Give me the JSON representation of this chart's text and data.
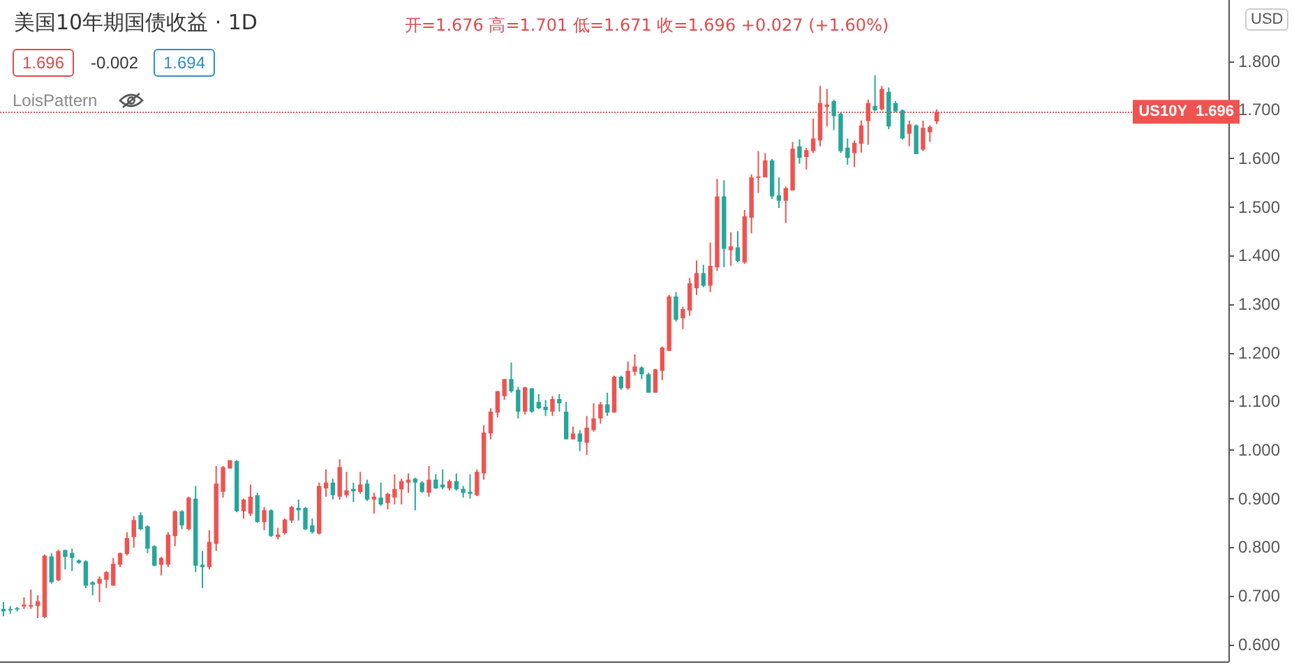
{
  "chart_data": {
    "type": "candlestick",
    "title": "美国10年期国债收益 · 1D",
    "subtitle": "开=1.676 高=1.701 低=1.671 收=1.696 +0.027 (+1.60%)",
    "annotations": [
      "1.696",
      "-0.002",
      "1.694",
      "LoisPattern",
      "USD"
    ],
    "categories": [
      null,
      null,
      null,
      null,
      null,
      null,
      null,
      null,
      null,
      null,
      null,
      null,
      null,
      null,
      null,
      null,
      null,
      null,
      null,
      null,
      null,
      null,
      null,
      null,
      null,
      null,
      null,
      null,
      null,
      null,
      null,
      null,
      null,
      null,
      null,
      null,
      null,
      null,
      null,
      null,
      null,
      null,
      null,
      null,
      null,
      null,
      null,
      null,
      null,
      null,
      null,
      null,
      null,
      null,
      null,
      null,
      null,
      null,
      null,
      null,
      null,
      null,
      null,
      null,
      null,
      null,
      null,
      null,
      null,
      null,
      null,
      null,
      null,
      null,
      null,
      null,
      null,
      null,
      null,
      null,
      null,
      null,
      null,
      null,
      null,
      null,
      null,
      null,
      null,
      null,
      null,
      null,
      null,
      null,
      null,
      null,
      null,
      null,
      null,
      null,
      null,
      null,
      null,
      null,
      null,
      null,
      null,
      null,
      null,
      null,
      null,
      null,
      null,
      null,
      null,
      null,
      null,
      null,
      null,
      null,
      null,
      null,
      null,
      null,
      null,
      null,
      null,
      null,
      null,
      null,
      null,
      null,
      null,
      null,
      null,
      null,
      null,
      null,
      null,
      null,
      null,
      null,
      null,
      null,
      null,
      null,
      null,
      null,
      null,
      null,
      null,
      null,
      null,
      null,
      null,
      null,
      null,
      null,
      null,
      null,
      null,
      null,
      null,
      null,
      null,
      null,
      null,
      null,
      null,
      null,
      null,
      null,
      null,
      null,
      null,
      null,
      null,
      null,
      null
    ],
    "ohlc": [
      [
        0.673,
        0.687,
        0.658,
        0.668
      ],
      [
        0.673,
        0.679,
        0.663,
        0.671
      ],
      [
        0.675,
        0.677,
        0.668,
        0.672
      ],
      [
        0.678,
        0.697,
        0.673,
        0.682
      ],
      [
        0.678,
        0.713,
        0.673,
        0.681
      ],
      [
        0.679,
        0.701,
        0.654,
        0.689
      ],
      [
        0.656,
        0.785,
        0.654,
        0.783
      ],
      [
        0.781,
        0.788,
        0.725,
        0.728
      ],
      [
        0.732,
        0.795,
        0.73,
        0.792
      ],
      [
        0.794,
        0.795,
        0.754,
        0.78
      ],
      [
        0.788,
        0.797,
        0.751,
        0.778
      ],
      [
        0.773,
        0.775,
        0.766,
        0.768
      ],
      [
        0.771,
        0.773,
        0.716,
        0.721
      ],
      [
        0.728,
        0.73,
        0.701,
        0.723
      ],
      [
        0.725,
        0.74,
        0.687,
        0.735
      ],
      [
        0.733,
        0.751,
        0.716,
        0.749
      ],
      [
        0.721,
        0.778,
        0.721,
        0.766
      ],
      [
        0.764,
        0.789,
        0.759,
        0.788
      ],
      [
        0.786,
        0.831,
        0.783,
        0.819
      ],
      [
        0.821,
        0.864,
        0.799,
        0.856
      ],
      [
        0.866,
        0.872,
        0.835,
        0.837
      ],
      [
        0.843,
        0.845,
        0.788,
        0.797
      ],
      [
        0.802,
        0.804,
        0.761,
        0.762
      ],
      [
        0.764,
        0.78,
        0.742,
        0.778
      ],
      [
        0.764,
        0.831,
        0.759,
        0.826
      ],
      [
        0.823,
        0.876,
        0.802,
        0.874
      ],
      [
        0.874,
        0.876,
        0.837,
        0.845
      ],
      [
        0.837,
        0.904,
        0.835,
        0.902
      ],
      [
        0.9,
        0.926,
        0.749,
        0.762
      ],
      [
        0.764,
        0.792,
        0.716,
        0.759
      ],
      [
        0.759,
        0.835,
        0.754,
        0.811
      ],
      [
        0.807,
        0.967,
        0.792,
        0.931
      ],
      [
        0.914,
        0.967,
        0.902,
        0.965
      ],
      [
        0.962,
        0.979,
        0.962,
        0.979
      ],
      [
        0.977,
        0.979,
        0.872,
        0.874
      ],
      [
        0.874,
        0.9,
        0.859,
        0.898
      ],
      [
        0.869,
        0.929,
        0.864,
        0.904
      ],
      [
        0.907,
        0.912,
        0.85,
        0.852
      ],
      [
        0.852,
        0.883,
        0.835,
        0.876
      ],
      [
        0.876,
        0.878,
        0.821,
        0.823
      ],
      [
        0.821,
        0.84,
        0.816,
        0.826
      ],
      [
        0.829,
        0.859,
        0.826,
        0.857
      ],
      [
        0.855,
        0.885,
        0.85,
        0.883
      ],
      [
        0.881,
        0.898,
        0.855,
        0.876
      ],
      [
        0.881,
        0.883,
        0.835,
        0.837
      ],
      [
        0.845,
        0.859,
        0.828,
        0.831
      ],
      [
        0.828,
        0.933,
        0.826,
        0.926
      ],
      [
        0.921,
        0.96,
        0.904,
        0.933
      ],
      [
        0.933,
        0.941,
        0.898,
        0.907
      ],
      [
        0.904,
        0.981,
        0.898,
        0.965
      ],
      [
        0.907,
        0.955,
        0.902,
        0.917
      ],
      [
        0.92,
        0.933,
        0.893,
        0.915
      ],
      [
        0.914,
        0.955,
        0.91,
        0.929
      ],
      [
        0.931,
        0.939,
        0.895,
        0.898
      ],
      [
        0.898,
        0.912,
        0.869,
        0.904
      ],
      [
        0.902,
        0.933,
        0.885,
        0.888
      ],
      [
        0.891,
        0.912,
        0.878,
        0.91
      ],
      [
        0.902,
        0.95,
        0.888,
        0.92
      ],
      [
        0.919,
        0.941,
        0.888,
        0.936
      ],
      [
        0.933,
        0.952,
        0.912,
        0.939
      ],
      [
        0.941,
        0.943,
        0.876,
        0.933
      ],
      [
        0.933,
        0.936,
        0.912,
        0.914
      ],
      [
        0.912,
        0.967,
        0.904,
        0.939
      ],
      [
        0.939,
        0.95,
        0.92,
        0.921
      ],
      [
        0.929,
        0.96,
        0.919,
        0.923
      ],
      [
        0.921,
        0.939,
        0.917,
        0.936
      ],
      [
        0.936,
        0.952,
        0.917,
        0.919
      ],
      [
        0.92,
        0.926,
        0.902,
        0.912
      ],
      [
        0.914,
        0.95,
        0.9,
        0.91
      ],
      [
        0.907,
        0.96,
        0.905,
        0.955
      ],
      [
        0.952,
        1.051,
        0.939,
        1.036
      ],
      [
        1.034,
        1.086,
        1.022,
        1.079
      ],
      [
        1.077,
        1.122,
        1.067,
        1.121
      ],
      [
        1.111,
        1.146,
        1.103,
        1.146
      ],
      [
        1.146,
        1.18,
        1.118,
        1.121
      ],
      [
        1.124,
        1.13,
        1.065,
        1.079
      ],
      [
        1.079,
        1.13,
        1.073,
        1.129
      ],
      [
        1.127,
        1.127,
        1.077,
        1.079
      ],
      [
        1.099,
        1.115,
        1.084,
        1.086
      ],
      [
        1.089,
        1.103,
        1.07,
        1.082
      ],
      [
        1.079,
        1.111,
        1.07,
        1.105
      ],
      [
        1.105,
        1.115,
        1.079,
        1.096
      ],
      [
        1.079,
        1.099,
        1.022,
        1.022
      ],
      [
        1.022,
        1.048,
        1.022,
        1.034
      ],
      [
        1.034,
        1.041,
        0.998,
        1.017
      ],
      [
        1.015,
        1.07,
        0.99,
        1.046
      ],
      [
        1.041,
        1.096,
        1.038,
        1.065
      ],
      [
        1.065,
        1.099,
        1.054,
        1.094
      ],
      [
        1.094,
        1.118,
        1.07,
        1.077
      ],
      [
        1.077,
        1.153,
        1.077,
        1.151
      ],
      [
        1.151,
        1.153,
        1.124,
        1.127
      ],
      [
        1.127,
        1.182,
        1.124,
        1.163
      ],
      [
        1.161,
        1.197,
        1.153,
        1.172
      ],
      [
        1.17,
        1.172,
        1.146,
        1.156
      ],
      [
        1.156,
        1.159,
        1.118,
        1.118
      ],
      [
        1.118,
        1.167,
        1.118,
        1.166
      ],
      [
        1.163,
        1.213,
        1.144,
        1.211
      ],
      [
        1.204,
        1.319,
        1.204,
        1.316
      ],
      [
        1.316,
        1.325,
        1.264,
        1.268
      ],
      [
        1.271,
        1.295,
        1.249,
        1.29
      ],
      [
        1.287,
        1.354,
        1.276,
        1.343
      ],
      [
        1.333,
        1.39,
        1.319,
        1.364
      ],
      [
        1.364,
        1.381,
        1.335,
        1.338
      ],
      [
        1.338,
        1.427,
        1.325,
        1.379
      ],
      [
        1.376,
        1.558,
        1.369,
        1.522
      ],
      [
        1.522,
        1.555,
        1.376,
        1.414
      ],
      [
        1.411,
        1.448,
        1.379,
        1.419
      ],
      [
        1.417,
        1.45,
        1.386,
        1.389
      ],
      [
        1.386,
        1.494,
        1.383,
        1.481
      ],
      [
        1.478,
        1.567,
        1.446,
        1.561
      ],
      [
        1.561,
        1.615,
        1.529,
        1.563
      ],
      [
        1.561,
        1.611,
        1.561,
        1.596
      ],
      [
        1.596,
        1.599,
        1.517,
        1.522
      ],
      [
        1.524,
        1.561,
        1.498,
        1.513
      ],
      [
        1.513,
        1.542,
        1.467,
        1.539
      ],
      [
        1.534,
        1.634,
        1.534,
        1.62
      ],
      [
        1.625,
        1.639,
        1.589,
        1.601
      ],
      [
        1.603,
        1.622,
        1.577,
        1.617
      ],
      [
        1.615,
        1.682,
        1.611,
        1.641
      ],
      [
        1.637,
        1.749,
        1.625,
        1.714
      ],
      [
        1.706,
        1.743,
        1.666,
        1.711
      ],
      [
        1.718,
        1.721,
        1.658,
        1.687
      ],
      [
        1.692,
        1.695,
        1.611,
        1.615
      ],
      [
        1.622,
        1.641,
        1.587,
        1.601
      ],
      [
        1.611,
        1.637,
        1.582,
        1.632
      ],
      [
        1.63,
        1.678,
        1.612,
        1.668
      ],
      [
        1.677,
        1.721,
        1.628,
        1.714
      ],
      [
        1.708,
        1.771,
        1.697,
        1.699
      ],
      [
        1.701,
        1.749,
        1.699,
        1.743
      ],
      [
        1.737,
        1.746,
        1.66,
        1.666
      ],
      [
        1.714,
        1.718,
        1.695,
        1.697
      ],
      [
        1.699,
        1.701,
        1.639,
        1.641
      ],
      [
        1.651,
        1.678,
        1.625,
        1.67
      ],
      [
        1.668,
        1.67,
        1.609,
        1.609
      ],
      [
        1.618,
        1.678,
        1.615,
        1.663
      ],
      [
        1.654,
        1.668,
        1.634,
        1.665
      ],
      [
        1.676,
        1.701,
        1.671,
        1.696
      ],
      null,
      null,
      null,
      null,
      null,
      null,
      null,
      null,
      null,
      null,
      null,
      null,
      null,
      null,
      null,
      null,
      null,
      null,
      null,
      null,
      null,
      null,
      null,
      null,
      null,
      null,
      null,
      null,
      null,
      null,
      null,
      null,
      null,
      null,
      null,
      null,
      null,
      null,
      null,
      null,
      null,
      null
    ],
    "ylim": [
      0.565,
      1.926
    ],
    "yticks": [
      {
        "value": 0.6,
        "label": "0.600"
      },
      {
        "value": 0.7,
        "label": "0.700"
      },
      {
        "value": 0.8,
        "label": "0.800"
      },
      {
        "value": 0.9,
        "label": "0.900"
      },
      {
        "value": 1.0,
        "label": "1.000"
      },
      {
        "value": 1.1,
        "label": "1.100"
      },
      {
        "value": 1.2,
        "label": "1.200"
      },
      {
        "value": 1.3,
        "label": "1.300"
      },
      {
        "value": 1.4,
        "label": "1.400"
      },
      {
        "value": 1.5,
        "label": "1.500"
      },
      {
        "value": 1.6,
        "label": "1.600"
      },
      {
        "value": 1.7,
        "label": "1.700"
      },
      {
        "value": 1.8,
        "label": "1.800"
      }
    ],
    "tick_labels": "y",
    "grid": false,
    "ref_lines": [
      {
        "axis": "y",
        "value": 1.696,
        "label": "US10Y  1.696",
        "color": "#ef5350",
        "line_style": "dotted"
      }
    ]
  }
}
